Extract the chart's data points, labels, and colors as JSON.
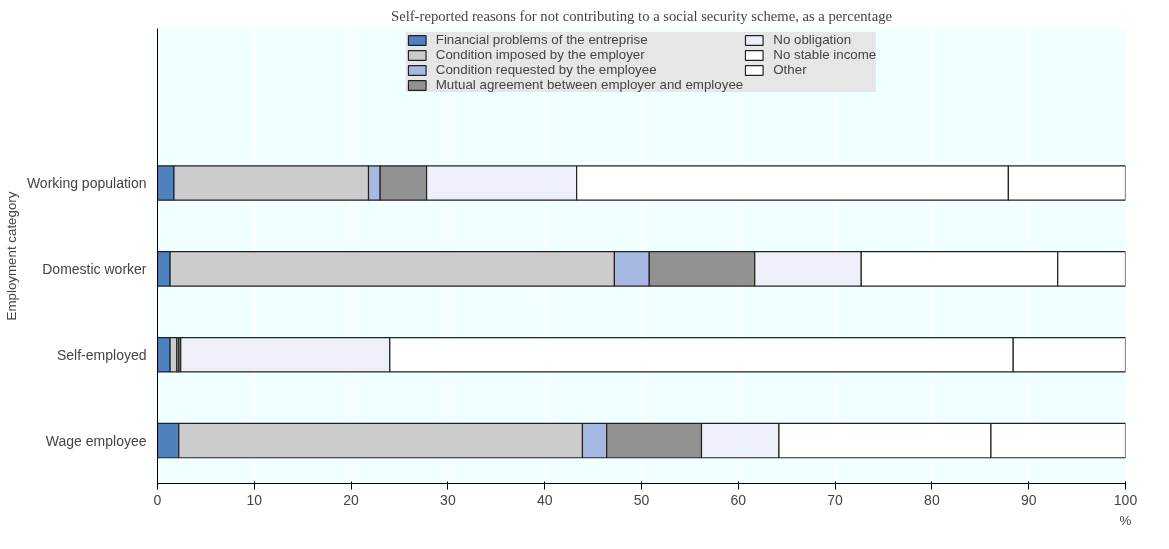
{
  "chart_data": {
    "type": "bar",
    "orientation": "horizontal",
    "stacked": true,
    "title": "Self-reported reasons for not contributing to a social security scheme, as a percentage",
    "xlabel": "%",
    "ylabel": "Employment category",
    "categories": [
      "Working population",
      "Domestic worker",
      "Self-employed",
      "Wage employee"
    ],
    "series": [
      {
        "name": "Financial problems of the entreprise",
        "color": "#4f81bd",
        "values": [
          1.7,
          1.3,
          1.3,
          2.2
        ]
      },
      {
        "name": "Condition imposed by the employer",
        "color": "#cccccc",
        "values": [
          20.1,
          45.9,
          0.7,
          41.7
        ]
      },
      {
        "name": "Condition requested by the employee",
        "color": "#a7b8e3",
        "values": [
          1.2,
          3.6,
          0.2,
          2.5
        ]
      },
      {
        "name": "Mutual agreement between employer and employee",
        "color": "#929292",
        "values": [
          4.8,
          10.9,
          0.2,
          9.8
        ]
      },
      {
        "name": "No obligation",
        "color": "#edf0f8",
        "values": [
          15.5,
          11.0,
          21.6,
          8.0
        ]
      },
      {
        "name": "No stable income",
        "color": "#ffffff",
        "values": [
          44.6,
          20.3,
          64.4,
          21.9
        ]
      },
      {
        "name": "Other",
        "color": "#ffffff",
        "values": [
          12.1,
          7.0,
          11.6,
          13.9
        ]
      }
    ],
    "xlim": [
      0,
      100
    ],
    "xticks": [
      0,
      10,
      20,
      30,
      40,
      50,
      60,
      70,
      80,
      90,
      100
    ],
    "grid": "x",
    "legend": "top"
  }
}
